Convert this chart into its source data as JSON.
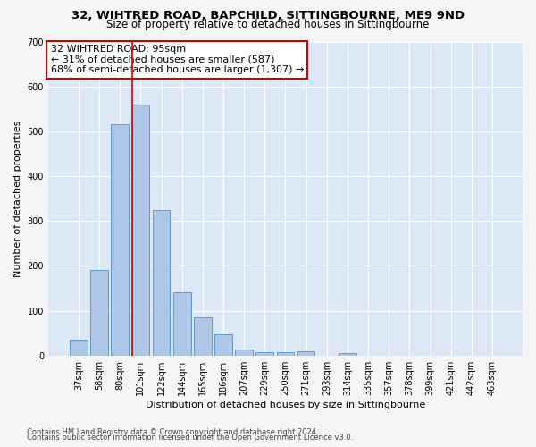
{
  "title": "32, WIHTRED ROAD, BAPCHILD, SITTINGBOURNE, ME9 9ND",
  "subtitle": "Size of property relative to detached houses in Sittingbourne",
  "xlabel": "Distribution of detached houses by size in Sittingbourne",
  "ylabel": "Number of detached properties",
  "categories": [
    "37sqm",
    "58sqm",
    "80sqm",
    "101sqm",
    "122sqm",
    "144sqm",
    "165sqm",
    "186sqm",
    "207sqm",
    "229sqm",
    "250sqm",
    "271sqm",
    "293sqm",
    "314sqm",
    "335sqm",
    "357sqm",
    "378sqm",
    "399sqm",
    "421sqm",
    "442sqm",
    "463sqm"
  ],
  "values": [
    35,
    190,
    515,
    560,
    325,
    140,
    85,
    47,
    13,
    8,
    8,
    10,
    0,
    6,
    0,
    0,
    0,
    0,
    0,
    0,
    0
  ],
  "bar_color": "#aec6e8",
  "bar_edgecolor": "#5b9bd5",
  "red_line_index": 3,
  "annotation_text": "32 WIHTRED ROAD: 95sqm\n← 31% of detached houses are smaller (587)\n68% of semi-detached houses are larger (1,307) →",
  "annotation_box_color": "#ffffff",
  "annotation_box_edgecolor": "#cc0000",
  "ylim": [
    0,
    700
  ],
  "yticks": [
    0,
    100,
    200,
    300,
    400,
    500,
    600,
    700
  ],
  "background_color": "#dce8f5",
  "fig_background_color": "#f5f5f5",
  "grid_color": "#ffffff",
  "footer1": "Contains HM Land Registry data © Crown copyright and database right 2024.",
  "footer2": "Contains public sector information licensed under the Open Government Licence v3.0.",
  "title_fontsize": 9.5,
  "subtitle_fontsize": 8.5,
  "tick_fontsize": 7,
  "ylabel_fontsize": 8,
  "xlabel_fontsize": 8,
  "annotation_fontsize": 8,
  "footer_fontsize": 6
}
